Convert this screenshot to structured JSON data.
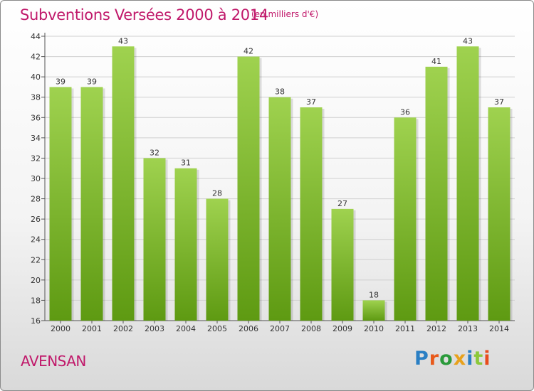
{
  "title": "Subventions Versées 2000 à 2014",
  "subtitle": "(en milliers d'€)",
  "town": "AVENSAN",
  "logo": {
    "text": "Proxiti",
    "letter_colors": [
      "#2a7fc4",
      "#e85a1c",
      "#2a9a3a",
      "#e8a11c",
      "#2a7fc4",
      "#8bc83a",
      "#e84c1c"
    ]
  },
  "colors": {
    "title": "#c0186a",
    "bar_top": "#9fd24f",
    "bar_bottom": "#5e9a12",
    "grid": "#d0d0d0"
  },
  "chart_data": {
    "type": "bar",
    "categories": [
      "2000",
      "2001",
      "2002",
      "2003",
      "2004",
      "2005",
      "2006",
      "2007",
      "2008",
      "2009",
      "2010",
      "2011",
      "2012",
      "2013",
      "2014"
    ],
    "values": [
      39,
      39,
      43,
      32,
      31,
      28,
      42,
      38,
      37,
      27,
      18,
      36,
      41,
      43,
      37
    ],
    "title": "Subventions Versées 2000 à 2014",
    "xlabel": "",
    "ylabel": "",
    "ylim": [
      16,
      44
    ],
    "yticks": [
      16,
      18,
      20,
      22,
      24,
      26,
      28,
      30,
      32,
      34,
      36,
      38,
      40,
      42,
      44
    ],
    "grid": true
  }
}
